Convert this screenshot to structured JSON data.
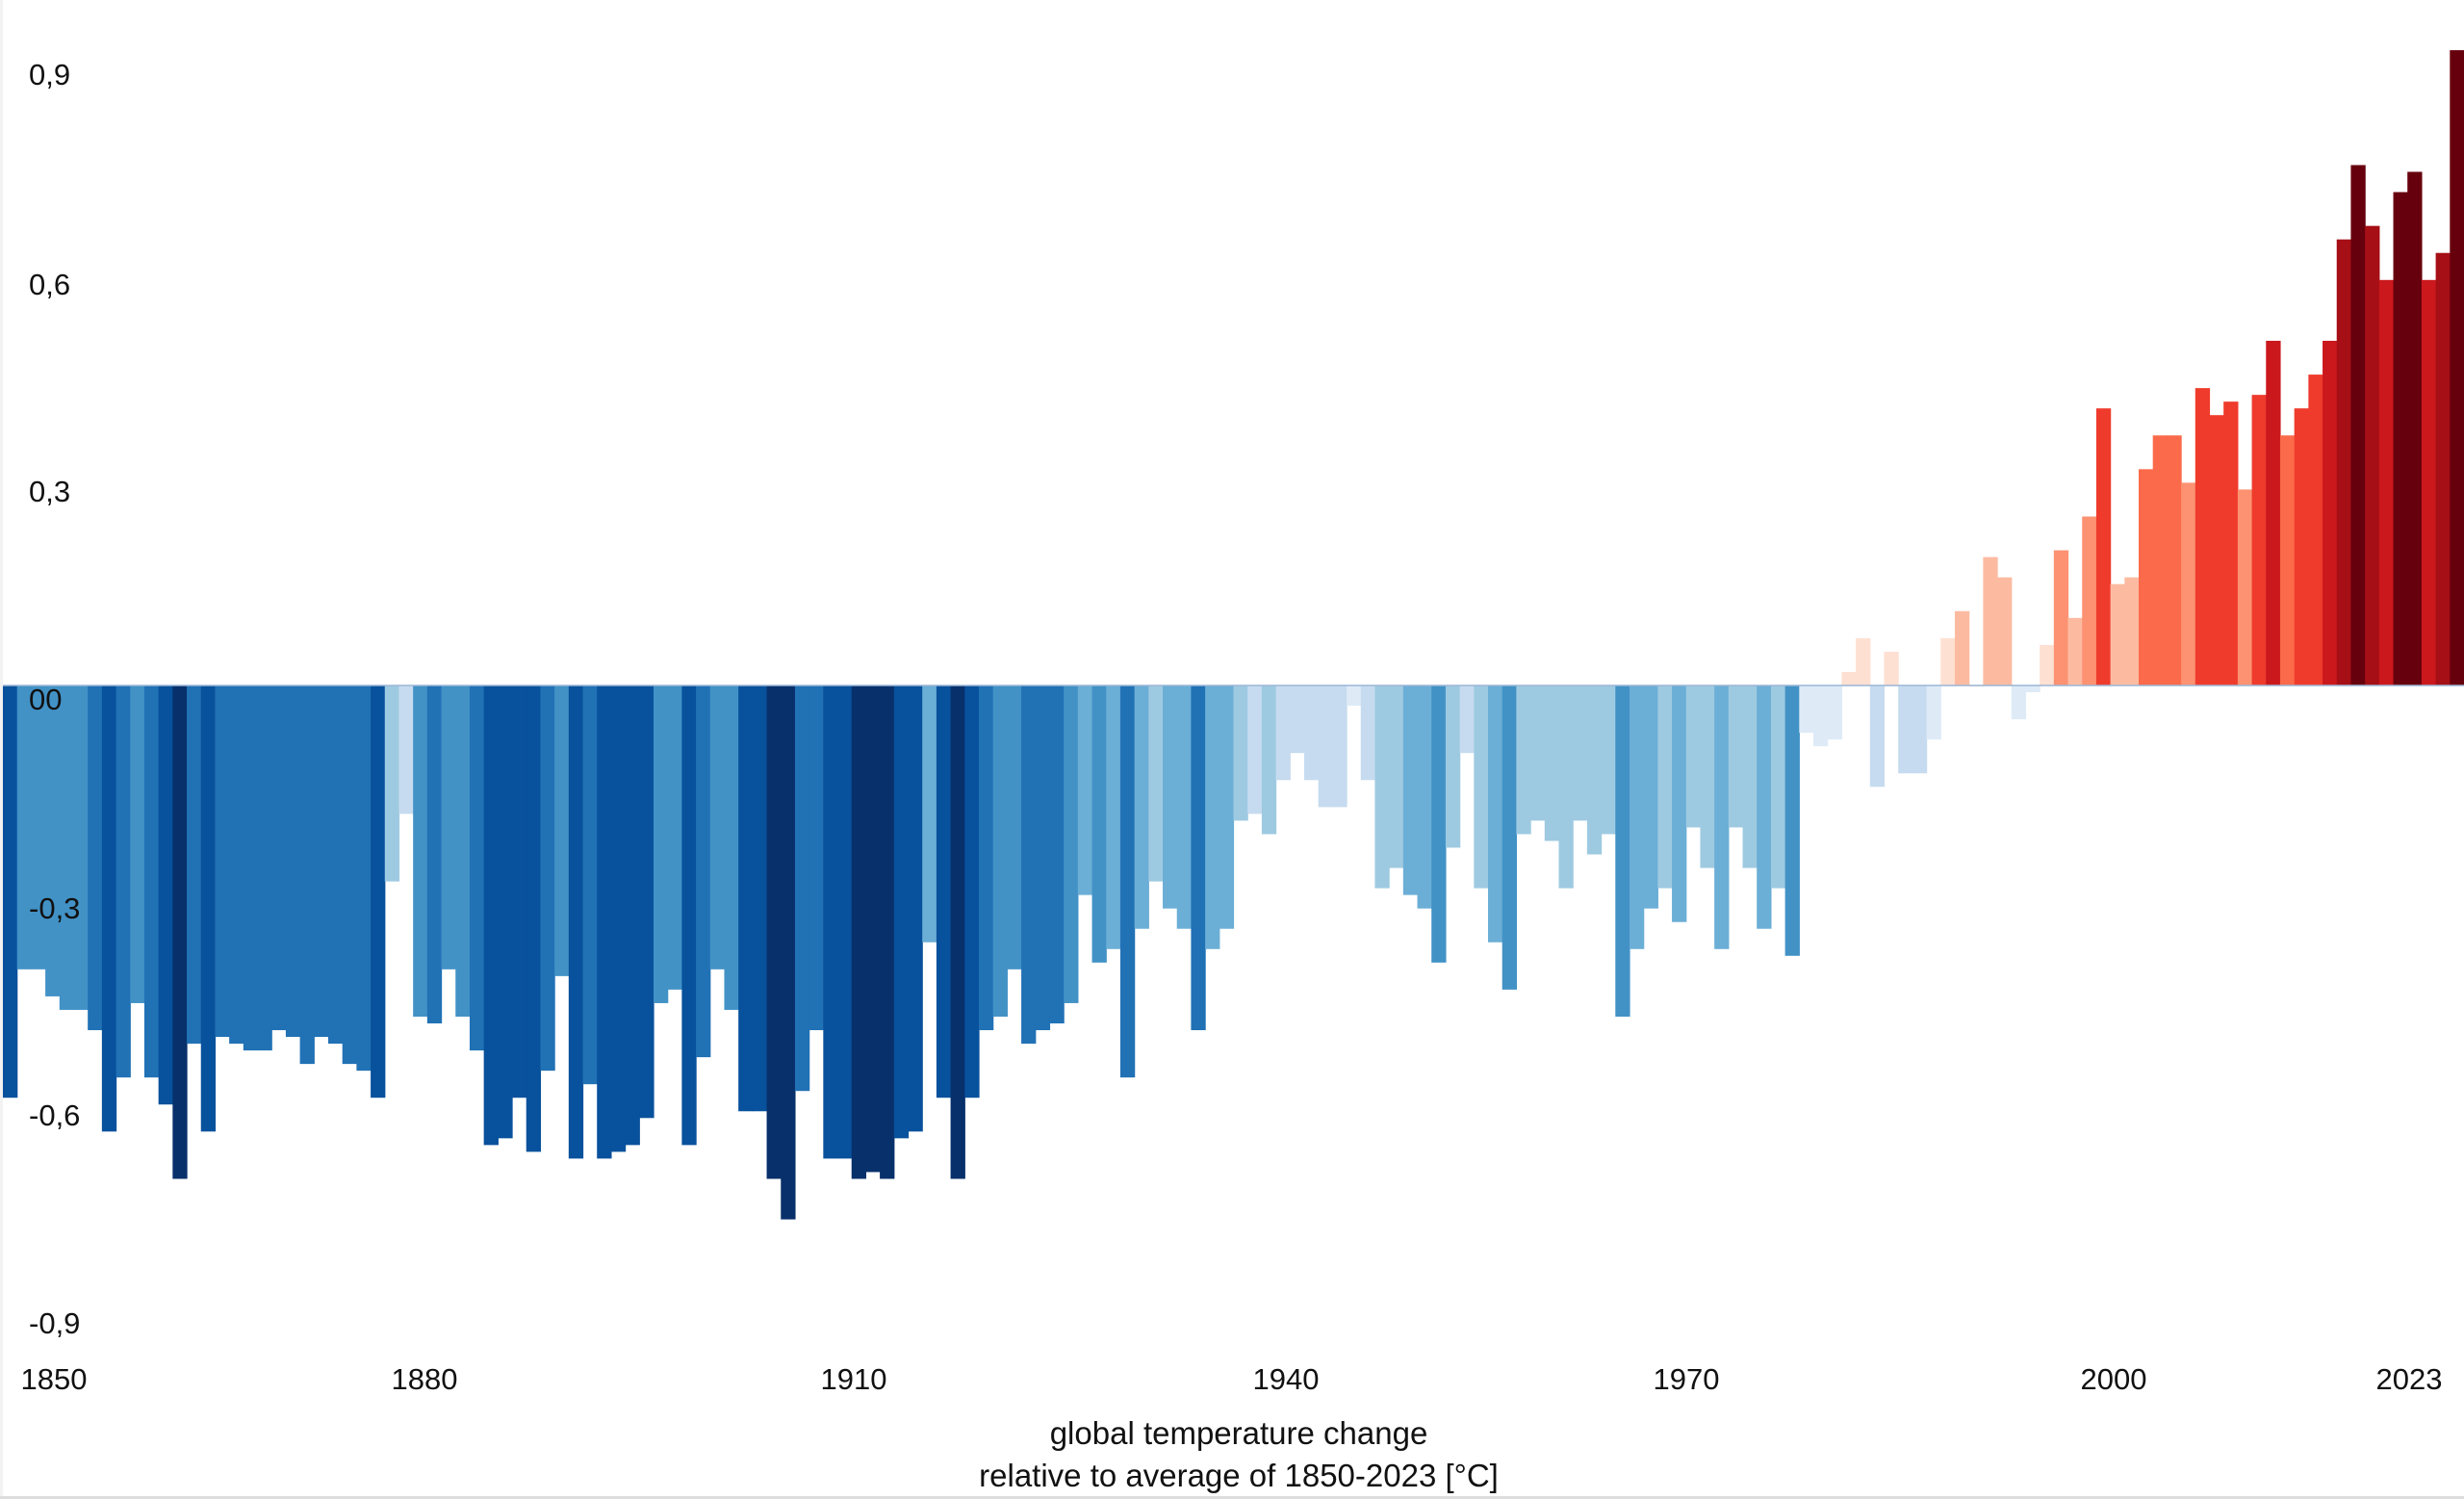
{
  "chart_data": {
    "type": "bar",
    "title": "",
    "xlabel": "global temperature change",
    "xlabel_line2": "relative to average of 1850-2023 [°C]",
    "ylabel": "",
    "ylim": [
      -0.9,
      0.9
    ],
    "y_ticks": [
      "0,9",
      "0,6",
      "0,3",
      "00",
      "-0,3",
      "-0,6",
      "-0,9"
    ],
    "y_tick_values": [
      0.9,
      0.6,
      0.3,
      0,
      -0.3,
      -0.6,
      -0.9
    ],
    "x_ticks": [
      "1850",
      "1880",
      "1910",
      "1940",
      "1970",
      "2000",
      "2023"
    ],
    "start_year": 1850,
    "end_year": 2023,
    "grid": false,
    "legend": "none",
    "values": [
      -0.61,
      -0.42,
      -0.42,
      -0.46,
      -0.48,
      -0.48,
      -0.51,
      -0.66,
      -0.58,
      -0.47,
      -0.58,
      -0.62,
      -0.73,
      -0.53,
      -0.66,
      -0.52,
      -0.53,
      -0.54,
      -0.54,
      -0.51,
      -0.52,
      -0.56,
      -0.52,
      -0.53,
      -0.56,
      -0.57,
      -0.61,
      -0.29,
      -0.19,
      -0.49,
      -0.5,
      -0.42,
      -0.49,
      -0.54,
      -0.68,
      -0.67,
      -0.61,
      -0.69,
      -0.57,
      -0.43,
      -0.7,
      -0.59,
      -0.7,
      -0.69,
      -0.68,
      -0.64,
      -0.47,
      -0.45,
      -0.68,
      -0.55,
      -0.42,
      -0.48,
      -0.63,
      -0.63,
      -0.73,
      -0.79,
      -0.6,
      -0.51,
      -0.7,
      -0.7,
      -0.73,
      -0.72,
      -0.73,
      -0.67,
      -0.66,
      -0.38,
      -0.61,
      -0.73,
      -0.61,
      -0.51,
      -0.49,
      -0.42,
      -0.53,
      -0.51,
      -0.5,
      -0.47,
      -0.31,
      -0.41,
      -0.39,
      -0.58,
      -0.36,
      -0.29,
      -0.33,
      -0.36,
      -0.51,
      -0.39,
      -0.36,
      -0.2,
      -0.19,
      -0.22,
      -0.14,
      -0.1,
      -0.14,
      -0.18,
      -0.18,
      -0.03,
      -0.14,
      -0.3,
      -0.27,
      -0.31,
      -0.33,
      -0.41,
      -0.24,
      -0.1,
      -0.3,
      -0.38,
      -0.45,
      -0.22,
      -0.2,
      -0.23,
      -0.3,
      -0.2,
      -0.25,
      -0.22,
      -0.49,
      -0.39,
      -0.33,
      -0.3,
      -0.35,
      -0.21,
      -0.27,
      -0.39,
      -0.21,
      -0.27,
      -0.36,
      -0.3,
      -0.4,
      -0.07,
      -0.09,
      -0.08,
      0.02,
      0.07,
      -0.15,
      0.05,
      -0.13,
      -0.13,
      -0.08,
      0.07,
      0.11,
      0.0,
      0.19,
      0.16,
      -0.05,
      -0.01,
      0.06,
      0.2,
      0.1,
      0.25,
      0.41,
      0.15,
      0.16,
      0.32,
      0.37,
      0.37,
      0.3,
      0.44,
      0.4,
      0.42,
      0.29,
      0.43,
      0.51,
      0.37,
      0.41,
      0.46,
      0.51,
      0.66,
      0.77,
      0.68,
      0.6,
      0.73,
      0.76,
      0.6,
      0.64,
      0.94
    ],
    "palette_negative": [
      "#deebf7",
      "#c6dbef",
      "#9ecae1",
      "#6baed6",
      "#4292c6",
      "#2171b5",
      "#08519c",
      "#08306b"
    ],
    "palette_positive": [
      "#fee0d2",
      "#fcbba1",
      "#fc9272",
      "#fb6a4a",
      "#ef3b2c",
      "#cb181d",
      "#a50f15",
      "#67000d"
    ]
  }
}
